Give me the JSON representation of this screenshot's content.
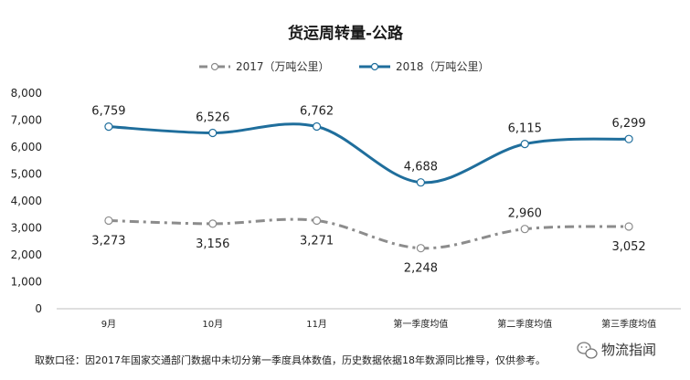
{
  "chart_data": {
    "type": "line",
    "title": "货运周转量-公路",
    "categories": [
      "9月",
      "10月",
      "11月",
      "第一季度均值",
      "第二季度均值",
      "第三季度均值"
    ],
    "series": [
      {
        "name": "2017（万吨公里）",
        "values": [
          3273,
          3156,
          3271,
          2248,
          2960,
          3052
        ],
        "labels": [
          "3,273",
          "3,156",
          "3,271",
          "2,248",
          "2,960",
          "3,052"
        ],
        "color": "#8c8c8c",
        "dash": "dash-dot"
      },
      {
        "name": "2018（万吨公里）",
        "values": [
          6759,
          6526,
          6762,
          4688,
          6115,
          6299
        ],
        "labels": [
          "6,759",
          "6,526",
          "6,762",
          "4,688",
          "6,115",
          "6,299"
        ],
        "color": "#1f6e9c",
        "dash": "solid"
      }
    ],
    "ylim": [
      0,
      8000
    ],
    "yticks": [
      0,
      1000,
      2000,
      3000,
      4000,
      5000,
      6000,
      7000,
      8000
    ],
    "ytick_labels": [
      "0",
      "1,000",
      "2,000",
      "3,000",
      "4,000",
      "5,000",
      "6,000",
      "7,000",
      "8,000"
    ],
    "legend": "top-center",
    "grid": false,
    "xlabel": "",
    "ylabel": ""
  },
  "footnote": "取数口径：因2017年国家交通部门数据中未切分第一季度具体数值，历史数据依据18年数源同比推导，仅供参考。",
  "watermark": "物流指闻",
  "watermark_icon": "wechat-icon"
}
